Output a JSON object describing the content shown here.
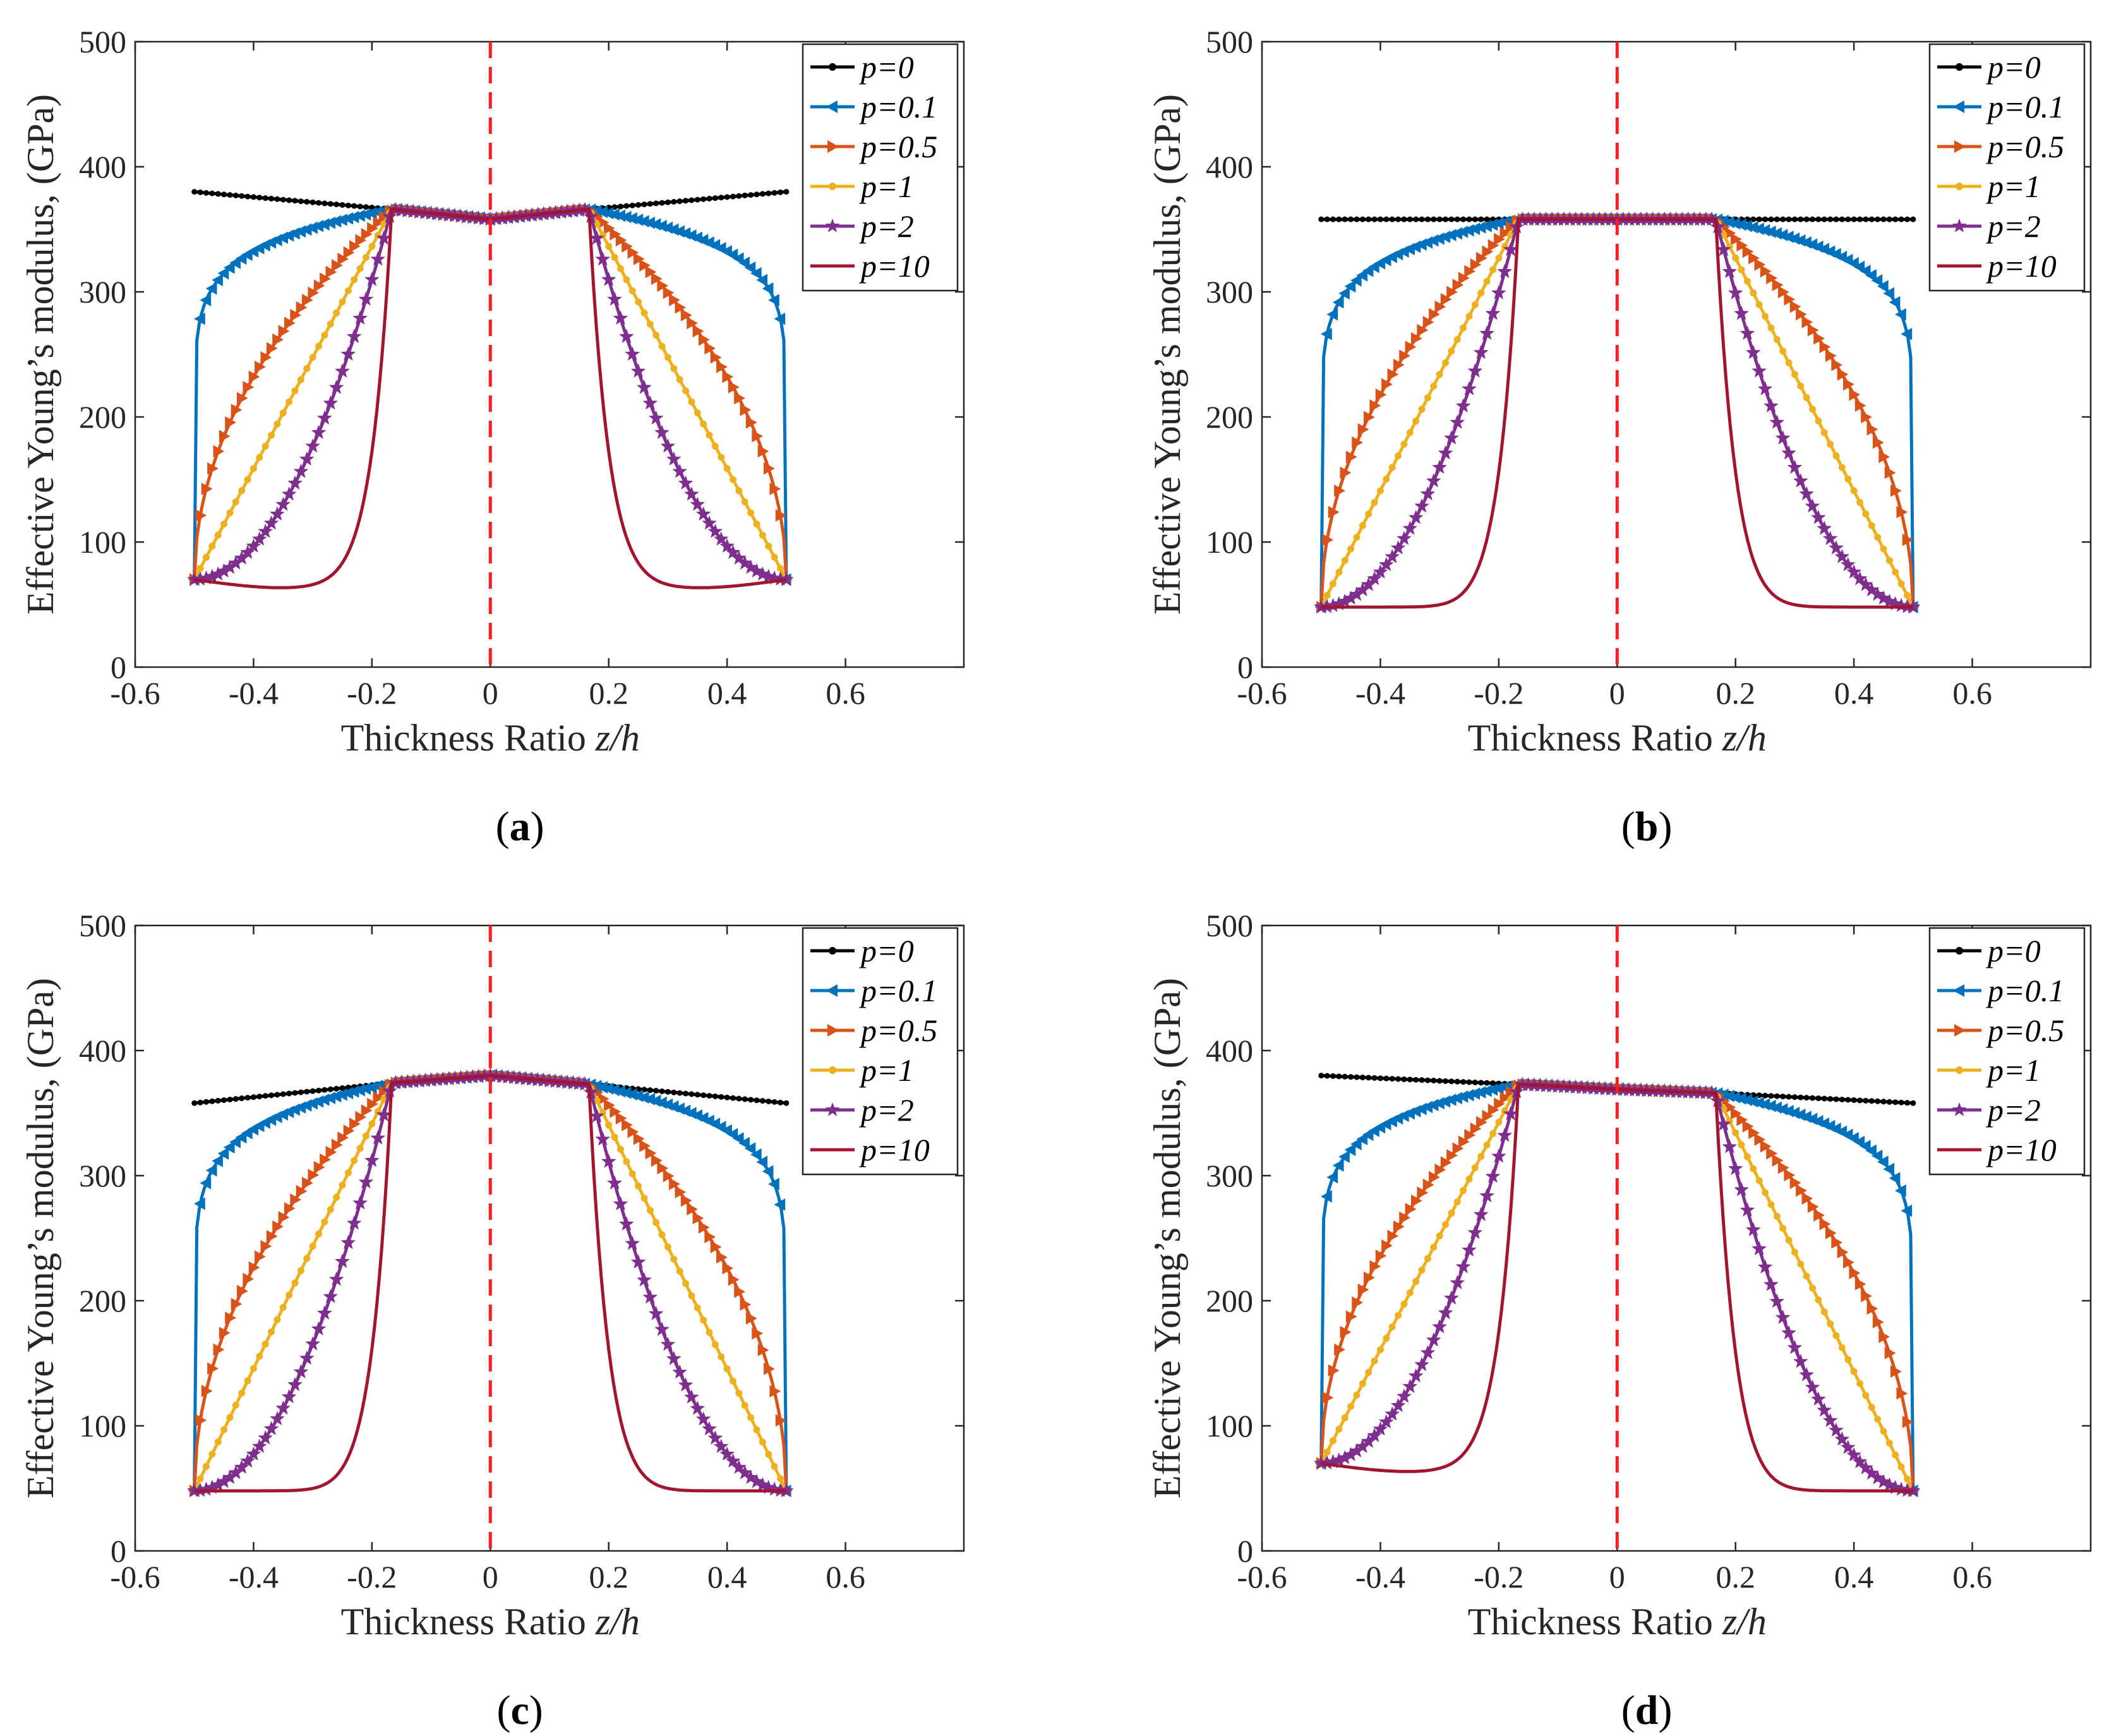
{
  "figure": {
    "colors": {
      "axis": "#262626",
      "refline": "#ff1f1f",
      "series": [
        "#000000",
        "#0072bd",
        "#d95319",
        "#edb120",
        "#7e2f8e",
        "#a2142f"
      ],
      "markers": [
        "dot",
        "triangle-left",
        "triangle-right",
        "circle",
        "star",
        "none"
      ]
    }
  },
  "chart_data": [
    {
      "type": "line",
      "panel_label": "a",
      "xlabel_prefix": "Thickness Ratio ",
      "xlabel_var": "z/h",
      "ylabel": "Effective Young’s modulus, (GPa)",
      "xlim": [
        -0.6,
        0.8
      ],
      "ylim": [
        0,
        500
      ],
      "xticks": [
        "-0.6",
        "-0.4",
        "-0.2",
        "0",
        "0.2",
        "0.4",
        "0.6"
      ],
      "yticks": [
        "0",
        "100",
        "200",
        "300",
        "400",
        "500"
      ],
      "reference_line_x": 0,
      "legend_position": "top-right",
      "params": {
        "bottom": 70,
        "top": 380,
        "core_edge": 366,
        "core_mid": 358,
        "core_right": 366
      },
      "series": [
        {
          "name": "p=0",
          "values": [
            [
              -0.5,
              380
            ],
            [
              -0.167,
              366
            ],
            [
              0,
              358
            ],
            [
              0.167,
              366
            ],
            [
              0.5,
              380
            ]
          ]
        },
        {
          "name": "p=0.1",
          "values": [
            [
              -0.5,
              70
            ],
            [
              -0.167,
              366
            ],
            [
              0,
              358
            ],
            [
              0.167,
              366
            ],
            [
              0.5,
              70
            ]
          ]
        },
        {
          "name": "p=0.5",
          "values": [
            [
              -0.5,
              70
            ],
            [
              -0.167,
              366
            ],
            [
              0,
              358
            ],
            [
              0.167,
              366
            ],
            [
              0.5,
              70
            ]
          ]
        },
        {
          "name": "p=1",
          "values": [
            [
              -0.5,
              70
            ],
            [
              -0.167,
              366
            ],
            [
              0,
              358
            ],
            [
              0.167,
              366
            ],
            [
              0.5,
              70
            ]
          ]
        },
        {
          "name": "p=2",
          "values": [
            [
              -0.5,
              70
            ],
            [
              -0.167,
              366
            ],
            [
              0,
              358
            ],
            [
              0.167,
              366
            ],
            [
              0.5,
              70
            ]
          ]
        },
        {
          "name": "p=10",
          "values": [
            [
              -0.5,
              70
            ],
            [
              -0.3,
              63
            ],
            [
              -0.167,
              366
            ],
            [
              0,
              358
            ],
            [
              0.167,
              366
            ],
            [
              0.3,
              63
            ],
            [
              0.5,
              70
            ]
          ]
        }
      ]
    },
    {
      "type": "line",
      "panel_label": "b",
      "xlabel_prefix": "Thickness Ratio ",
      "xlabel_var": "z/h",
      "ylabel": "Effective Young’s modulus, (GPa)",
      "xlim": [
        -0.6,
        0.8
      ],
      "ylim": [
        0,
        500
      ],
      "xticks": [
        "-0.6",
        "-0.4",
        "-0.2",
        "0",
        "0.2",
        "0.4",
        "0.6"
      ],
      "yticks": [
        "0",
        "100",
        "200",
        "300",
        "400",
        "500"
      ],
      "reference_line_x": 0,
      "legend_position": "top-right",
      "params": {
        "bottom": 48,
        "top": 358,
        "core_edge": 358,
        "core_mid": 358,
        "core_right": 358
      },
      "series": [
        {
          "name": "p=0",
          "values": [
            [
              -0.5,
              358
            ],
            [
              0,
              358
            ],
            [
              0.5,
              358
            ]
          ]
        },
        {
          "name": "p=0.1",
          "values": [
            [
              -0.5,
              48
            ],
            [
              -0.167,
              358
            ],
            [
              0,
              358
            ],
            [
              0.167,
              358
            ],
            [
              0.5,
              48
            ]
          ]
        },
        {
          "name": "p=0.5",
          "values": [
            [
              -0.5,
              48
            ],
            [
              -0.167,
              358
            ],
            [
              0,
              358
            ],
            [
              0.167,
              358
            ],
            [
              0.5,
              48
            ]
          ]
        },
        {
          "name": "p=1",
          "values": [
            [
              -0.5,
              48
            ],
            [
              -0.167,
              358
            ],
            [
              0,
              358
            ],
            [
              0.167,
              358
            ],
            [
              0.5,
              48
            ]
          ]
        },
        {
          "name": "p=2",
          "values": [
            [
              -0.5,
              48
            ],
            [
              -0.167,
              358
            ],
            [
              0,
              358
            ],
            [
              0.167,
              358
            ],
            [
              0.5,
              48
            ]
          ]
        },
        {
          "name": "p=10",
          "values": [
            [
              -0.5,
              48
            ],
            [
              -0.3,
              48
            ],
            [
              -0.167,
              358
            ],
            [
              0,
              358
            ],
            [
              0.167,
              358
            ],
            [
              0.3,
              48
            ],
            [
              0.5,
              48
            ]
          ]
        }
      ]
    },
    {
      "type": "line",
      "panel_label": "c",
      "xlabel_prefix": "Thickness Ratio ",
      "xlabel_var": "z/h",
      "ylabel": "Effective Young’s modulus, (GPa)",
      "xlim": [
        -0.6,
        0.8
      ],
      "ylim": [
        0,
        500
      ],
      "xticks": [
        "-0.6",
        "-0.4",
        "-0.2",
        "0",
        "0.2",
        "0.4",
        "0.6"
      ],
      "yticks": [
        "0",
        "100",
        "200",
        "300",
        "400",
        "500"
      ],
      "reference_line_x": 0,
      "legend_position": "top-right",
      "params": {
        "bottom": 48,
        "top": 358,
        "core_edge": 374,
        "core_mid": 380,
        "core_right": 373
      },
      "series": [
        {
          "name": "p=0",
          "values": [
            [
              -0.5,
              358
            ],
            [
              -0.167,
              374
            ],
            [
              0,
              380
            ],
            [
              0.167,
              373
            ],
            [
              0.5,
              358
            ]
          ]
        },
        {
          "name": "p=0.1",
          "values": [
            [
              -0.5,
              48
            ],
            [
              -0.167,
              374
            ],
            [
              0,
              380
            ],
            [
              0.167,
              373
            ],
            [
              0.5,
              48
            ]
          ]
        },
        {
          "name": "p=0.5",
          "values": [
            [
              -0.5,
              48
            ],
            [
              -0.167,
              374
            ],
            [
              0,
              380
            ],
            [
              0.167,
              373
            ],
            [
              0.5,
              48
            ]
          ]
        },
        {
          "name": "p=1",
          "values": [
            [
              -0.5,
              48
            ],
            [
              -0.167,
              374
            ],
            [
              0,
              380
            ],
            [
              0.167,
              373
            ],
            [
              0.5,
              48
            ]
          ]
        },
        {
          "name": "p=2",
          "values": [
            [
              -0.5,
              48
            ],
            [
              -0.167,
              374
            ],
            [
              0,
              380
            ],
            [
              0.167,
              373
            ],
            [
              0.5,
              48
            ]
          ]
        },
        {
          "name": "p=10",
          "values": [
            [
              -0.5,
              48
            ],
            [
              -0.3,
              57
            ],
            [
              -0.167,
              374
            ],
            [
              0,
              380
            ],
            [
              0.167,
              373
            ],
            [
              0.3,
              57
            ],
            [
              0.5,
              48
            ]
          ]
        }
      ]
    },
    {
      "type": "line",
      "panel_label": "d",
      "xlabel_prefix": "Thickness Ratio ",
      "xlabel_var": "z/h",
      "ylabel": "Effective Young’s modulus, (GPa)",
      "xlim": [
        -0.6,
        0.8
      ],
      "ylim": [
        0,
        500
      ],
      "xticks": [
        "-0.6",
        "-0.4",
        "-0.2",
        "0",
        "0.2",
        "0.4",
        "0.6"
      ],
      "yticks": [
        "0",
        "100",
        "200",
        "300",
        "400",
        "500"
      ],
      "reference_line_x": 0,
      "legend_position": "top-right",
      "params": {
        "bottom": 70,
        "top": 380,
        "bottom_right": 48,
        "top_right": 358,
        "core_edge": 373,
        "core_mid": 369,
        "core_right": 366
      },
      "series": [
        {
          "name": "p=0",
          "values": [
            [
              -0.5,
              380
            ],
            [
              -0.167,
              373
            ],
            [
              0,
              369
            ],
            [
              0.167,
              366
            ],
            [
              0.5,
              358
            ]
          ]
        },
        {
          "name": "p=0.1",
          "values": [
            [
              -0.5,
              70
            ],
            [
              -0.167,
              373
            ],
            [
              0,
              369
            ],
            [
              0.167,
              366
            ],
            [
              0.5,
              48
            ]
          ]
        },
        {
          "name": "p=0.5",
          "values": [
            [
              -0.5,
              70
            ],
            [
              -0.167,
              373
            ],
            [
              0,
              369
            ],
            [
              0.167,
              366
            ],
            [
              0.5,
              48
            ]
          ]
        },
        {
          "name": "p=1",
          "values": [
            [
              -0.5,
              70
            ],
            [
              -0.167,
              373
            ],
            [
              0,
              369
            ],
            [
              0.167,
              366
            ],
            [
              0.5,
              48
            ]
          ]
        },
        {
          "name": "p=2",
          "values": [
            [
              -0.5,
              70
            ],
            [
              -0.167,
              373
            ],
            [
              0,
              369
            ],
            [
              0.167,
              366
            ],
            [
              0.5,
              48
            ]
          ]
        },
        {
          "name": "p=10",
          "values": [
            [
              -0.5,
              70
            ],
            [
              -0.3,
              66
            ],
            [
              -0.167,
              373
            ],
            [
              0,
              369
            ],
            [
              0.167,
              366
            ],
            [
              0.3,
              52
            ],
            [
              0.5,
              48
            ]
          ]
        }
      ]
    }
  ]
}
